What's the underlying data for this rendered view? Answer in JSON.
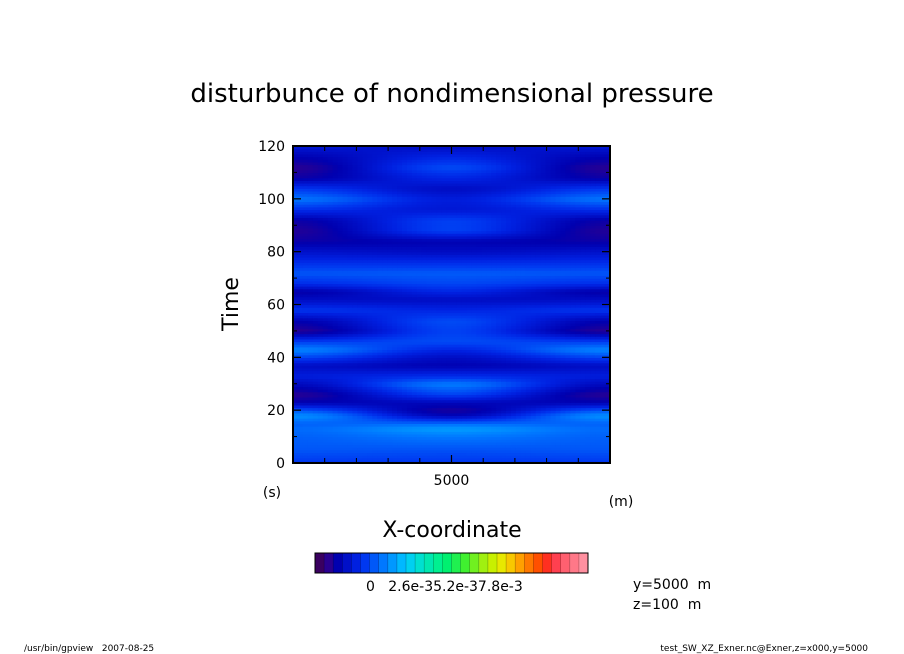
{
  "chart_data": {
    "type": "heatmap",
    "title": "disturbunce of nondimensional pressure",
    "xlabel": "X-coordinate",
    "ylabel": "Time",
    "x_unit": "(m)",
    "y_unit": "(s)",
    "xlim": [
      0,
      10000
    ],
    "ylim": [
      0,
      120
    ],
    "x_ticks": [
      5000
    ],
    "y_ticks": [
      0,
      20,
      40,
      60,
      80,
      100,
      120
    ],
    "colorbar": {
      "tick_labels": [
        "0",
        "2.6e-3",
        "5.2e-3",
        "7.8e-3"
      ],
      "label_text": "0   2.6e-35.2e-37.8e-3"
    },
    "info": [
      "y=5000  m",
      "z=100  m"
    ],
    "footer_left": "/usr/bin/gpview   2007-08-25",
    "footer_right": "test_SW_XZ_Exner.nc@Exner,z=x000,y=5000",
    "field_rows": [
      {
        "t": 0,
        "edge": 0.28,
        "center": 0.28
      },
      {
        "t": 5,
        "edge": 0.34,
        "center": 0.33
      },
      {
        "t": 10,
        "edge": 0.36,
        "center": 0.4
      },
      {
        "t": 13,
        "edge": 0.38,
        "center": 0.47
      },
      {
        "t": 15,
        "edge": 0.36,
        "center": 0.38
      },
      {
        "t": 18,
        "edge": 0.45,
        "center": 0.14
      },
      {
        "t": 20,
        "edge": 0.34,
        "center": 0.08
      },
      {
        "t": 23,
        "edge": 0.12,
        "center": 0.14
      },
      {
        "t": 26,
        "edge": 0.06,
        "center": 0.3
      },
      {
        "t": 30,
        "edge": 0.15,
        "center": 0.41
      },
      {
        "t": 33,
        "edge": 0.22,
        "center": 0.26
      },
      {
        "t": 37,
        "edge": 0.16,
        "center": 0.12
      },
      {
        "t": 40,
        "edge": 0.3,
        "center": 0.16
      },
      {
        "t": 43,
        "edge": 0.43,
        "center": 0.24
      },
      {
        "t": 46,
        "edge": 0.3,
        "center": 0.32
      },
      {
        "t": 50,
        "edge": 0.06,
        "center": 0.3
      },
      {
        "t": 54,
        "edge": 0.12,
        "center": 0.32
      },
      {
        "t": 58,
        "edge": 0.28,
        "center": 0.24
      },
      {
        "t": 62,
        "edge": 0.16,
        "center": 0.16
      },
      {
        "t": 65,
        "edge": 0.1,
        "center": 0.24
      },
      {
        "t": 68,
        "edge": 0.26,
        "center": 0.31
      },
      {
        "t": 72,
        "edge": 0.34,
        "center": 0.35
      },
      {
        "t": 76,
        "edge": 0.26,
        "center": 0.26
      },
      {
        "t": 80,
        "edge": 0.18,
        "center": 0.16
      },
      {
        "t": 84,
        "edge": 0.1,
        "center": 0.12
      },
      {
        "t": 88,
        "edge": 0.07,
        "center": 0.3
      },
      {
        "t": 92,
        "edge": 0.1,
        "center": 0.3
      },
      {
        "t": 96,
        "edge": 0.26,
        "center": 0.2
      },
      {
        "t": 100,
        "edge": 0.4,
        "center": 0.22
      },
      {
        "t": 104,
        "edge": 0.28,
        "center": 0.16
      },
      {
        "t": 108,
        "edge": 0.1,
        "center": 0.24
      },
      {
        "t": 112,
        "edge": 0.06,
        "center": 0.32
      },
      {
        "t": 116,
        "edge": 0.12,
        "center": 0.24
      },
      {
        "t": 120,
        "edge": 0.2,
        "center": 0.16
      }
    ],
    "colorbar_colors": [
      "#3a0060",
      "#2a0090",
      "#0000b0",
      "#0010c8",
      "#0020e0",
      "#0038f0",
      "#0058f8",
      "#0078ff",
      "#0098ff",
      "#00b8ff",
      "#00d0f0",
      "#00e0d0",
      "#00e8b0",
      "#00f090",
      "#00f070",
      "#20f050",
      "#40f030",
      "#70f020",
      "#a0f010",
      "#c8f000",
      "#e8e800",
      "#f8c800",
      "#ffa000",
      "#ff7800",
      "#ff5000",
      "#ff3020",
      "#ff4050",
      "#ff6070",
      "#ff7888",
      "#ff90a0"
    ]
  }
}
